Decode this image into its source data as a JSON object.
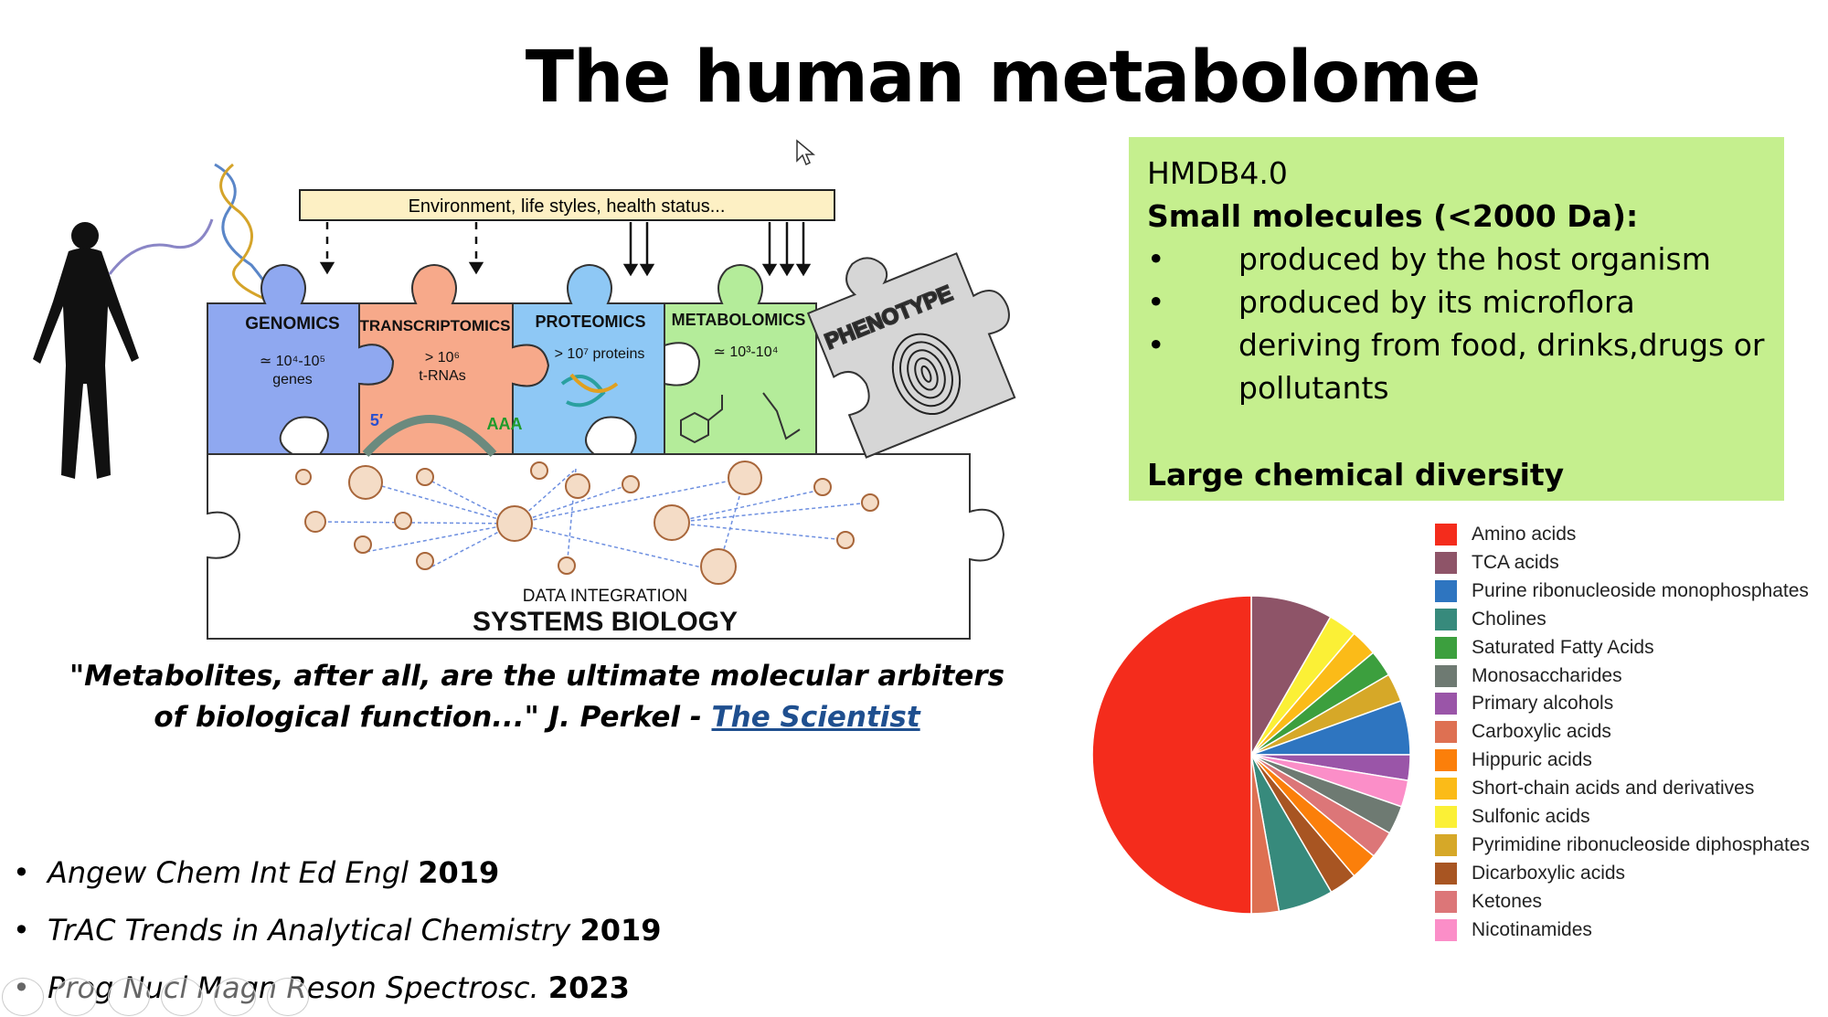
{
  "slide": {
    "title": "The human metabolome"
  },
  "info_box": {
    "heading": "HMDB4.0",
    "subheading": "Small molecules (<2000 Da):",
    "bullets": [
      "produced by the host organism",
      "produced by its microflora",
      "deriving from food, drinks,drugs or pollutants"
    ],
    "footer": "Large chemical diversity",
    "background": "#c5ef8e"
  },
  "diagram": {
    "environment_label": "Environment, life styles, health status...",
    "pieces": [
      {
        "title": "GENOMICS",
        "line1": "≃ 10⁴-10⁵",
        "line2": "genes",
        "color": "#8fa8f0"
      },
      {
        "title": "TRANSCRIPTOMICS",
        "line1": "> 10⁶",
        "line2": "t-RNAs",
        "color": "#f7a98a"
      },
      {
        "title": "PROTEOMICS",
        "line1": "> 10⁷ proteins",
        "line2": "",
        "color": "#8ec8f5"
      },
      {
        "title": "METABOLOMICS",
        "line1": "≃ 10³-10⁴",
        "line2": "",
        "color": "#b4ec9a"
      }
    ],
    "rna_labels": {
      "five_prime": "5′",
      "poly_a": "AAA"
    },
    "phenotype_label": "PHENOTYPE",
    "integration_label": "DATA INTEGRATION",
    "systems_label": "SYSTEMS BIOLOGY"
  },
  "quote": {
    "text": "\"Metabolites, after all, are the ultimate molecular arbiters of biological function...\" J. Perkel - ",
    "link": "The Scientist"
  },
  "references": [
    {
      "journal": "Angew Chem Int Ed Engl",
      "year": "2019"
    },
    {
      "journal": "TrAC Trends in Analytical Chemistry",
      "year": "2019"
    },
    {
      "journal": "Prog Nucl Magn Reson Spectrosc.",
      "year": "2023"
    }
  ],
  "chart_data": {
    "type": "pie",
    "title": "",
    "legend_position": "right",
    "legend": [
      {
        "name": "Amino acids",
        "color": "#f42c1c"
      },
      {
        "name": "TCA acids",
        "color": "#8e5468"
      },
      {
        "name": "Purine ribonucleoside monophosphates",
        "color": "#2e75c0"
      },
      {
        "name": "Cholines",
        "color": "#378a7c"
      },
      {
        "name": "Saturated Fatty Acids",
        "color": "#3c9f3e"
      },
      {
        "name": "Monosaccharides",
        "color": "#6e7a72"
      },
      {
        "name": "Primary alcohols",
        "color": "#9a55a8"
      },
      {
        "name": "Carboxylic acids",
        "color": "#de7052"
      },
      {
        "name": "Hippuric acids",
        "color": "#fb7f0a"
      },
      {
        "name": "Short-chain acids and derivatives",
        "color": "#fbbb18"
      },
      {
        "name": "Sulfonic acids",
        "color": "#fbf036"
      },
      {
        "name": "Pyrimidine ribonucleoside diphosphates",
        "color": "#d6a828"
      },
      {
        "name": "Dicarboxylic acids",
        "color": "#a85522"
      },
      {
        "name": "Ketones",
        "color": "#dc7678"
      },
      {
        "name": "Nicotinamides",
        "color": "#fb8ec8"
      }
    ],
    "slices_clockwise_from_top": [
      {
        "name": "TCA acids",
        "value": 8.3
      },
      {
        "name": "Sulfonic acids",
        "value": 2.9
      },
      {
        "name": "Short-chain acids and derivatives",
        "value": 2.7
      },
      {
        "name": "Saturated Fatty Acids",
        "value": 2.7
      },
      {
        "name": "Pyrimidine ribonucleoside diphosphates",
        "value": 2.9
      },
      {
        "name": "Purine ribonucleoside monophosphates",
        "value": 5.5
      },
      {
        "name": "Primary alcohols",
        "value": 2.6
      },
      {
        "name": "Nicotinamides",
        "value": 2.7
      },
      {
        "name": "Monosaccharides",
        "value": 2.9
      },
      {
        "name": "Ketones",
        "value": 2.8
      },
      {
        "name": "Hippuric acids",
        "value": 2.8
      },
      {
        "name": "Dicarboxylic acids",
        "value": 2.8
      },
      {
        "name": "Cholines",
        "value": 5.6
      },
      {
        "name": "Carboxylic acids",
        "value": 2.8
      },
      {
        "name": "Amino acids",
        "value": 50.0
      }
    ]
  }
}
